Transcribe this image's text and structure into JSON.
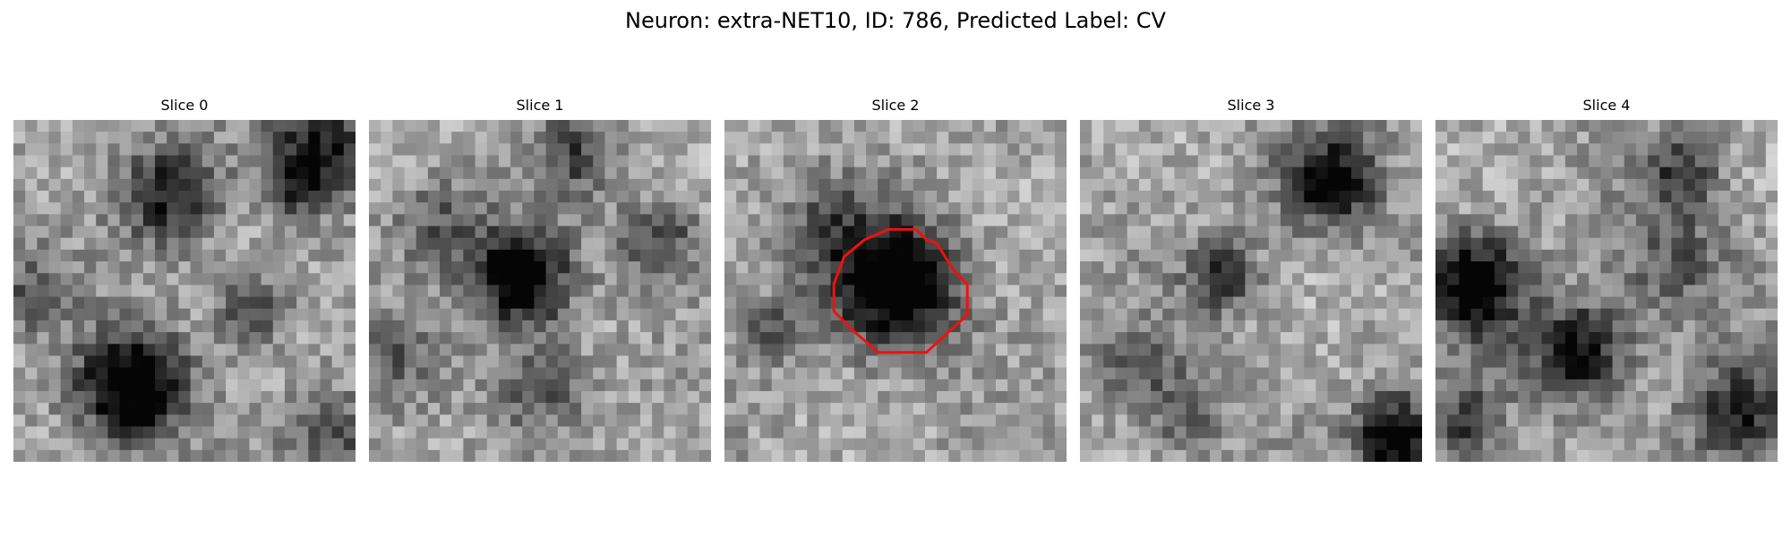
{
  "figure": {
    "title": "Neuron: extra-NET10, ID: 786, Predicted Label: CV"
  },
  "slices": [
    {
      "title": "Slice 0",
      "blobs": [
        [
          0.45,
          0.22,
          0.1,
          0.55
        ],
        [
          0.35,
          0.78,
          0.11,
          0.85
        ],
        [
          0.7,
          0.55,
          0.07,
          0.45
        ],
        [
          0.9,
          0.08,
          0.1,
          0.6
        ],
        [
          0.82,
          0.2,
          0.06,
          0.4
        ],
        [
          0.05,
          0.5,
          0.08,
          0.3
        ],
        [
          0.95,
          0.95,
          0.1,
          0.35
        ]
      ]
    },
    {
      "title": "Slice 1",
      "blobs": [
        [
          0.44,
          0.46,
          0.1,
          0.8
        ],
        [
          0.5,
          0.78,
          0.1,
          0.35
        ],
        [
          0.6,
          0.1,
          0.08,
          0.35
        ],
        [
          0.85,
          0.35,
          0.08,
          0.4
        ],
        [
          0.08,
          0.7,
          0.08,
          0.25
        ],
        [
          0.2,
          0.3,
          0.1,
          0.3
        ]
      ]
    },
    {
      "title": "Slice 2",
      "blobs": [
        [
          0.5,
          0.48,
          0.13,
          0.85
        ],
        [
          0.15,
          0.62,
          0.07,
          0.3
        ],
        [
          0.3,
          0.3,
          0.1,
          0.25
        ]
      ],
      "outline_color": "#ee1111"
    },
    {
      "title": "Slice 3",
      "blobs": [
        [
          0.73,
          0.18,
          0.1,
          0.65
        ],
        [
          0.42,
          0.46,
          0.07,
          0.5
        ],
        [
          0.93,
          0.93,
          0.08,
          0.8
        ],
        [
          0.15,
          0.7,
          0.08,
          0.3
        ],
        [
          0.3,
          0.85,
          0.09,
          0.3
        ]
      ]
    },
    {
      "title": "Slice 4",
      "blobs": [
        [
          0.12,
          0.48,
          0.1,
          0.75
        ],
        [
          0.42,
          0.68,
          0.1,
          0.65
        ],
        [
          0.72,
          0.15,
          0.08,
          0.4
        ],
        [
          0.7,
          0.42,
          0.12,
          0.3
        ],
        [
          0.88,
          0.85,
          0.1,
          0.5
        ],
        [
          0.08,
          0.88,
          0.08,
          0.4
        ]
      ]
    }
  ]
}
